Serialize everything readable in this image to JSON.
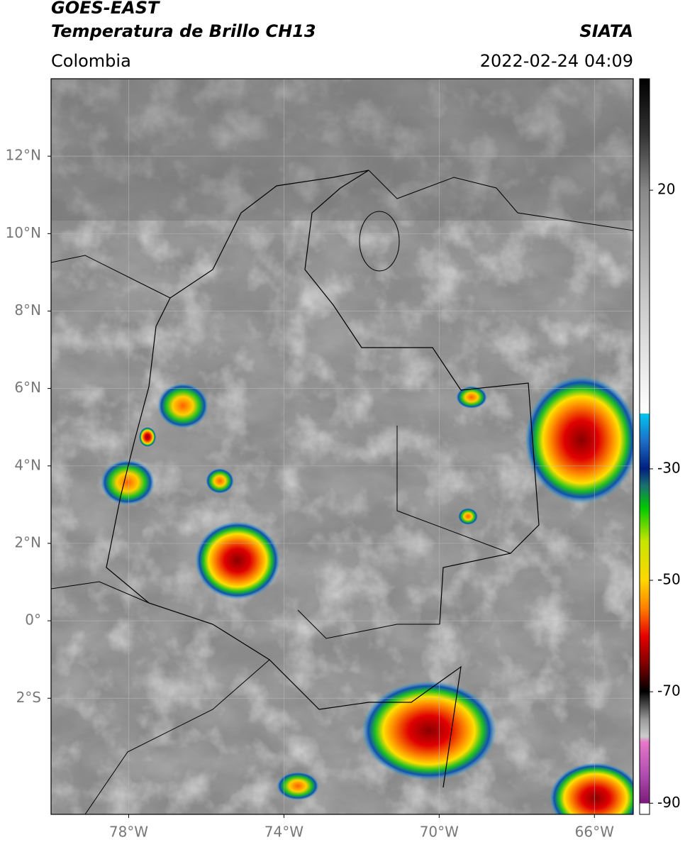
{
  "header": {
    "title": "GOES-EAST",
    "subtitle": "Temperatura de Brillo CH13",
    "region": "Colombia",
    "source": "SIATA",
    "datetime": "2022-02-24 04:09"
  },
  "map": {
    "lon_range": [
      -80,
      -65
    ],
    "lat_range": [
      -5,
      14
    ],
    "grid": true,
    "lat_ticks": [
      {
        "value": 12,
        "label": "12°N"
      },
      {
        "value": 10,
        "label": "10°N"
      },
      {
        "value": 8,
        "label": "8°N"
      },
      {
        "value": 6,
        "label": "6°N"
      },
      {
        "value": 4,
        "label": "4°N"
      },
      {
        "value": 2,
        "label": "2°N"
      },
      {
        "value": 0,
        "label": "0°"
      },
      {
        "value": -2,
        "label": "2°S"
      }
    ],
    "lon_ticks": [
      {
        "value": -78,
        "label": "78°W"
      },
      {
        "value": -74,
        "label": "74°W"
      },
      {
        "value": -70,
        "label": "70°W"
      },
      {
        "value": -66,
        "label": "66°W"
      }
    ]
  },
  "colorbar": {
    "range": [
      -92,
      40
    ],
    "ticks": [
      20,
      -30,
      -50,
      -70,
      -90
    ]
  }
}
